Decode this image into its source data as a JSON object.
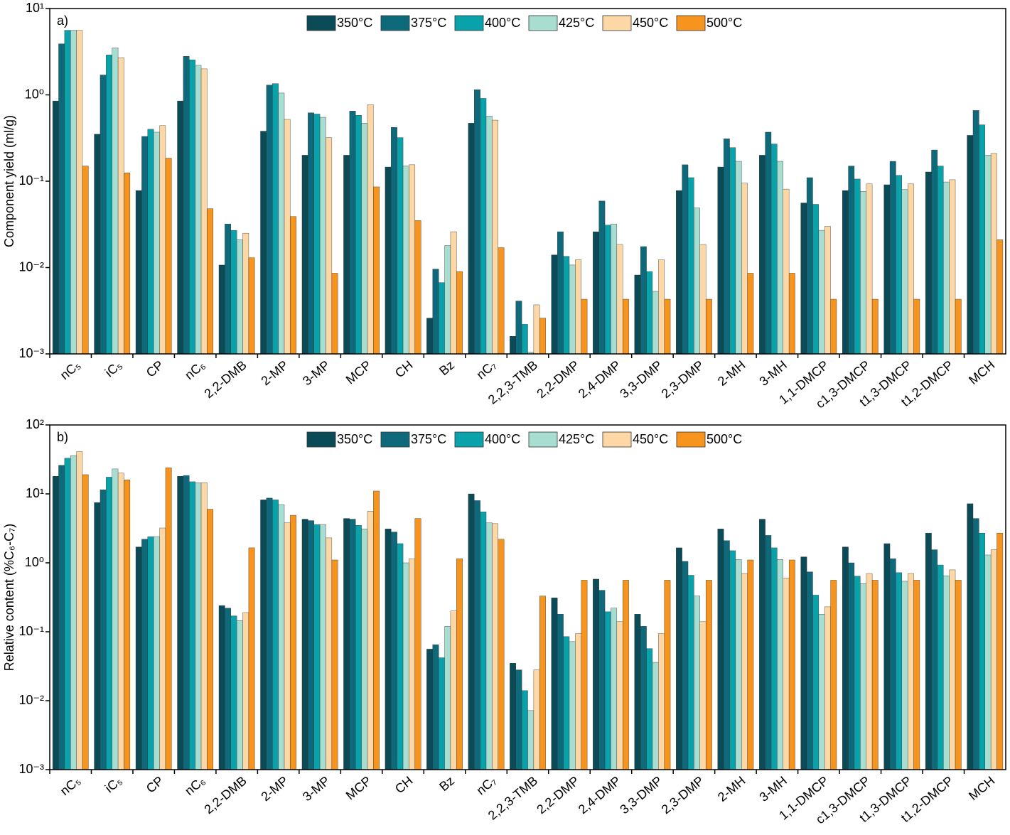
{
  "chart_data": [
    {
      "type": "bar",
      "panel_label": "a)",
      "ylabel": "Component yield (ml/g)",
      "log_scale": true,
      "categories": [
        "nC₅",
        "iC₅",
        "CP",
        "nC₆",
        "2,2-DMB",
        "2-MP",
        "3-MP",
        "MCP",
        "CH",
        "Bz",
        "nC₇",
        "2,2,3-TMB",
        "2,2-DMP",
        "2,4-DMP",
        "3,3-DMP",
        "2,3-DMP",
        "2-MH",
        "3-MH",
        "1,1-DMCP",
        "c1,3-DMCP",
        "t1,3-DMCP",
        "t1,2-DMCP",
        "MCH"
      ],
      "series": [
        {
          "name": "350°C",
          "color": "#0b4a57",
          "values": [
            0.85,
            0.35,
            0.078,
            0.85,
            0.0107,
            0.38,
            0.2,
            0.2,
            0.146,
            0.0026,
            0.47,
            0.0016,
            0.014,
            0.026,
            0.0082,
            0.078,
            0.146,
            0.2,
            0.056,
            0.078,
            0.091,
            0.128,
            0.34
          ]
        },
        {
          "name": "375°C",
          "color": "#0e6a7b",
          "values": [
            3.9,
            1.7,
            0.33,
            2.8,
            0.032,
            1.3,
            0.62,
            0.65,
            0.42,
            0.0096,
            1.15,
            0.0041,
            0.026,
            0.059,
            0.0175,
            0.155,
            0.31,
            0.37,
            0.11,
            0.15,
            0.17,
            0.23,
            0.66
          ]
        },
        {
          "name": "400°C",
          "color": "#0aa2aa",
          "values": [
            5.6,
            2.9,
            0.4,
            2.55,
            0.027,
            1.35,
            0.6,
            0.58,
            0.32,
            0.0067,
            0.91,
            0.0022,
            0.0135,
            0.031,
            0.009,
            0.11,
            0.245,
            0.27,
            0.054,
            0.106,
            0.117,
            0.15,
            0.45
          ]
        },
        {
          "name": "425°C",
          "color": "#a8ddd2",
          "values": [
            5.6,
            3.5,
            0.37,
            2.2,
            0.021,
            1.05,
            0.55,
            0.47,
            0.15,
            0.018,
            0.57,
            0.00105,
            0.0107,
            0.032,
            0.0053,
            0.049,
            0.17,
            0.17,
            0.027,
            0.076,
            0.08,
            0.098,
            0.2
          ]
        },
        {
          "name": "450°C",
          "color": "#fdd8a6",
          "values": [
            5.6,
            2.7,
            0.44,
            2.0,
            0.025,
            0.52,
            0.32,
            0.77,
            0.155,
            0.026,
            0.51,
            0.0037,
            0.0123,
            0.0185,
            0.0123,
            0.0185,
            0.095,
            0.081,
            0.03,
            0.093,
            0.093,
            0.104,
            0.21
          ]
        },
        {
          "name": "500°C",
          "color": "#f7941d",
          "values": [
            0.15,
            0.125,
            0.185,
            0.048,
            0.013,
            0.039,
            0.0086,
            0.086,
            0.035,
            0.009,
            0.017,
            0.0026,
            0.0043,
            0.0043,
            0.0043,
            0.0043,
            0.0086,
            0.0086,
            0.0043,
            0.0043,
            0.0043,
            0.0043,
            0.021
          ]
        }
      ],
      "ylim": [
        0.001,
        10
      ],
      "yticks": [
        {
          "value": 0.001,
          "label": "10⁻³"
        },
        {
          "value": 0.01,
          "label": "10⁻²"
        },
        {
          "value": 0.1,
          "label": "10⁻¹"
        },
        {
          "value": 1,
          "label": "10⁰"
        },
        {
          "value": 10,
          "label": "10¹"
        }
      ]
    },
    {
      "type": "bar",
      "panel_label": "b)",
      "ylabel": "Relative content (%C₆-C₇)",
      "log_scale": true,
      "categories": [
        "nC₅",
        "iC₅",
        "CP",
        "nC₆",
        "2,2-DMB",
        "2-MP",
        "3-MP",
        "MCP",
        "CH",
        "Bz",
        "nC₇",
        "2,2,3-TMB",
        "2,2-DMP",
        "2,4-DMP",
        "3,3-DMP",
        "2,3-DMP",
        "2-MH",
        "3-MH",
        "1,1-DMCP",
        "c1,3-DMCP",
        "t1,3-DMCP",
        "t1,2-DMCP",
        "MCH"
      ],
      "series": [
        {
          "name": "350°C",
          "color": "#0b4a57",
          "values": [
            18,
            7.5,
            1.7,
            18,
            0.24,
            8.2,
            4.3,
            4.4,
            3.1,
            0.056,
            10,
            0.035,
            0.31,
            0.58,
            0.18,
            1.65,
            3.1,
            4.3,
            1.22,
            1.7,
            1.9,
            2.7,
            7.2
          ]
        },
        {
          "name": "375°C",
          "color": "#0e6a7b",
          "values": [
            26,
            11.5,
            2.2,
            18.5,
            0.22,
            8.7,
            4.1,
            4.3,
            2.8,
            0.065,
            8,
            0.028,
            0.18,
            0.4,
            0.12,
            1.05,
            2.1,
            2.5,
            0.74,
            1.0,
            1.15,
            1.55,
            4.4
          ]
        },
        {
          "name": "400°C",
          "color": "#0aa2aa",
          "values": [
            33,
            17.5,
            2.4,
            15,
            0.17,
            8.2,
            3.6,
            3.5,
            1.9,
            0.042,
            5.5,
            0.014,
            0.085,
            0.195,
            0.057,
            0.66,
            1.5,
            1.65,
            0.34,
            0.64,
            0.72,
            0.93,
            2.7
          ]
        },
        {
          "name": "425°C",
          "color": "#a8ddd2",
          "values": [
            36,
            23,
            2.4,
            14.5,
            0.145,
            7.0,
            3.6,
            3.1,
            1.0,
            0.12,
            3.8,
            0.0072,
            0.072,
            0.22,
            0.036,
            0.33,
            1.12,
            1.12,
            0.18,
            0.5,
            0.54,
            0.65,
            1.3
          ]
        },
        {
          "name": "450°C",
          "color": "#fdd8a6",
          "values": [
            41,
            20,
            3.2,
            14.5,
            0.19,
            3.8,
            2.3,
            5.6,
            1.15,
            0.2,
            3.7,
            0.028,
            0.094,
            0.14,
            0.094,
            0.14,
            0.7,
            0.6,
            0.23,
            0.7,
            0.7,
            0.79,
            1.55
          ]
        },
        {
          "name": "500°C",
          "color": "#f7941d",
          "values": [
            19,
            16,
            24,
            6,
            1.65,
            4.9,
            1.1,
            11,
            4.4,
            1.15,
            2.2,
            0.33,
            0.56,
            0.56,
            0.56,
            0.56,
            1.1,
            1.1,
            0.56,
            0.56,
            0.56,
            0.56,
            2.7
          ]
        }
      ],
      "ylim": [
        0.001,
        100
      ],
      "yticks": [
        {
          "value": 0.001,
          "label": "10⁻³"
        },
        {
          "value": 0.01,
          "label": "10⁻²"
        },
        {
          "value": 0.1,
          "label": "10⁻¹"
        },
        {
          "value": 1,
          "label": "10⁰"
        },
        {
          "value": 10,
          "label": "10¹"
        },
        {
          "value": 100,
          "label": "10²"
        }
      ]
    }
  ]
}
